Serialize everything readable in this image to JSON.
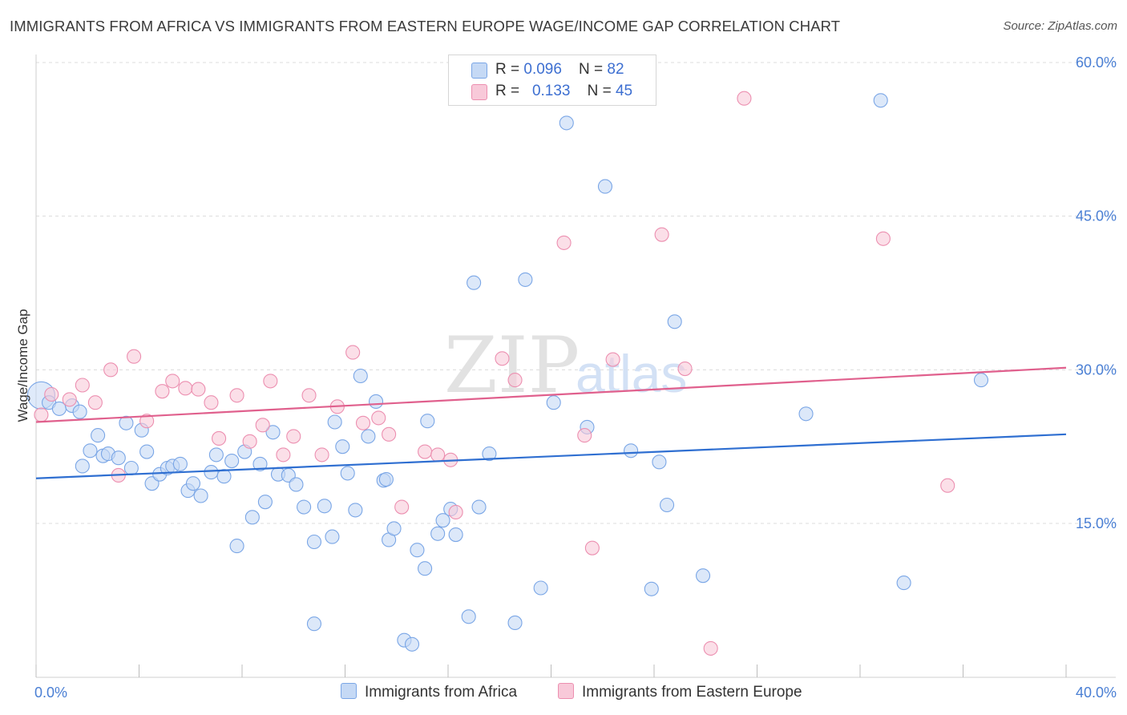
{
  "title": "IMMIGRANTS FROM AFRICA VS IMMIGRANTS FROM EASTERN EUROPE WAGE/INCOME GAP CORRELATION CHART",
  "source": "Source: ZipAtlas.com",
  "watermark": {
    "zip": "ZIP",
    "atlas": "atlas"
  },
  "legend": {
    "rows": [
      {
        "r_label": "R = ",
        "r_value": "0.096",
        "n_label": "N = ",
        "n_value": "82"
      },
      {
        "r_label": "R = ",
        "r_value": "0.133",
        "n_label": "N = ",
        "n_value": "45"
      }
    ]
  },
  "chart_data": {
    "type": "scatter",
    "xlabel": "",
    "ylabel": "Wage/Income Gap",
    "xlim": [
      0,
      40
    ],
    "ylim": [
      0,
      60
    ],
    "x_tick_labels": [
      {
        "value": 0,
        "label": "0.0%"
      },
      {
        "value": 40,
        "label": "40.0%"
      }
    ],
    "x_minor_ticks": [
      0,
      4,
      8,
      12,
      16,
      20,
      24,
      28,
      32,
      36,
      40
    ],
    "y_ticks": [
      {
        "value": 15,
        "label": "15.0%"
      },
      {
        "value": 30,
        "label": "30.0%"
      },
      {
        "value": 45,
        "label": "45.0%"
      },
      {
        "value": 60,
        "label": "60.0%"
      }
    ],
    "grid": true,
    "legend_position": "top-center",
    "series": [
      {
        "name": "Immigrants from Africa",
        "color": "#7aa6e6",
        "fill": "#c5d9f5",
        "trend": {
          "x": [
            0,
            40
          ],
          "y": [
            19.4,
            23.7
          ],
          "color": "#2f6fd1"
        },
        "points": [
          [
            0.2,
            27.5
          ],
          [
            0.5,
            26.8
          ],
          [
            0.9,
            26.2
          ],
          [
            1.4,
            26.5
          ],
          [
            1.7,
            25.9
          ],
          [
            1.8,
            20.6
          ],
          [
            2.1,
            22.1
          ],
          [
            2.4,
            23.6
          ],
          [
            2.6,
            21.6
          ],
          [
            2.8,
            21.8
          ],
          [
            3.2,
            21.4
          ],
          [
            3.5,
            24.8
          ],
          [
            3.7,
            20.4
          ],
          [
            4.1,
            24.1
          ],
          [
            4.3,
            22.0
          ],
          [
            4.5,
            18.9
          ],
          [
            4.8,
            19.8
          ],
          [
            5.1,
            20.4
          ],
          [
            5.3,
            20.6
          ],
          [
            5.6,
            20.8
          ],
          [
            5.9,
            18.2
          ],
          [
            6.1,
            18.9
          ],
          [
            6.4,
            17.7
          ],
          [
            6.8,
            20.0
          ],
          [
            7.0,
            21.7
          ],
          [
            7.3,
            19.6
          ],
          [
            7.6,
            21.1
          ],
          [
            7.8,
            12.8
          ],
          [
            8.1,
            22.0
          ],
          [
            8.4,
            15.6
          ],
          [
            8.7,
            20.8
          ],
          [
            8.9,
            17.1
          ],
          [
            9.2,
            23.9
          ],
          [
            9.4,
            19.8
          ],
          [
            9.8,
            19.7
          ],
          [
            10.1,
            18.8
          ],
          [
            10.4,
            16.6
          ],
          [
            10.8,
            13.2
          ],
          [
            10.8,
            5.2
          ],
          [
            11.2,
            16.7
          ],
          [
            11.5,
            13.7
          ],
          [
            11.6,
            24.9
          ],
          [
            11.9,
            22.5
          ],
          [
            12.1,
            19.9
          ],
          [
            12.4,
            16.3
          ],
          [
            12.6,
            29.4
          ],
          [
            12.9,
            23.5
          ],
          [
            13.2,
            26.9
          ],
          [
            13.5,
            19.2
          ],
          [
            13.7,
            13.4
          ],
          [
            13.9,
            14.5
          ],
          [
            14.3,
            3.6
          ],
          [
            14.6,
            3.2
          ],
          [
            14.8,
            12.4
          ],
          [
            15.1,
            10.6
          ],
          [
            15.2,
            25.0
          ],
          [
            15.6,
            14.0
          ],
          [
            15.8,
            15.3
          ],
          [
            16.1,
            16.4
          ],
          [
            16.3,
            13.9
          ],
          [
            16.8,
            5.9
          ],
          [
            17.2,
            16.6
          ],
          [
            17.6,
            21.8
          ],
          [
            17.0,
            38.5
          ],
          [
            18.6,
            5.3
          ],
          [
            19.0,
            38.8
          ],
          [
            19.6,
            8.7
          ],
          [
            20.1,
            26.8
          ],
          [
            20.6,
            54.1
          ],
          [
            21.4,
            24.4
          ],
          [
            22.1,
            47.9
          ],
          [
            23.1,
            22.1
          ],
          [
            23.9,
            8.6
          ],
          [
            24.2,
            21.0
          ],
          [
            24.5,
            16.8
          ],
          [
            24.8,
            34.7
          ],
          [
            25.9,
            9.9
          ],
          [
            29.9,
            25.7
          ],
          [
            32.8,
            56.3
          ],
          [
            33.7,
            9.2
          ],
          [
            36.7,
            29.0
          ],
          [
            13.6,
            19.3
          ]
        ]
      },
      {
        "name": "Immigrants from Eastern Europe",
        "color": "#ec8fb0",
        "fill": "#f8c9d9",
        "trend": {
          "x": [
            0,
            40
          ],
          "y": [
            24.9,
            30.2
          ],
          "color": "#e0608d"
        },
        "points": [
          [
            0.2,
            25.6
          ],
          [
            0.6,
            27.6
          ],
          [
            1.3,
            27.1
          ],
          [
            1.8,
            28.5
          ],
          [
            2.3,
            26.8
          ],
          [
            2.9,
            30.0
          ],
          [
            3.2,
            19.7
          ],
          [
            3.8,
            31.3
          ],
          [
            4.3,
            25.0
          ],
          [
            4.9,
            27.9
          ],
          [
            5.3,
            28.9
          ],
          [
            5.8,
            28.2
          ],
          [
            6.3,
            28.1
          ],
          [
            6.8,
            26.8
          ],
          [
            7.1,
            23.3
          ],
          [
            7.8,
            27.5
          ],
          [
            8.3,
            23.0
          ],
          [
            8.8,
            24.6
          ],
          [
            9.1,
            28.9
          ],
          [
            9.6,
            21.7
          ],
          [
            10.0,
            23.5
          ],
          [
            10.6,
            27.5
          ],
          [
            11.1,
            21.7
          ],
          [
            11.7,
            26.4
          ],
          [
            12.3,
            31.7
          ],
          [
            12.7,
            24.8
          ],
          [
            13.3,
            25.3
          ],
          [
            13.7,
            23.7
          ],
          [
            14.2,
            16.6
          ],
          [
            15.1,
            22.0
          ],
          [
            15.6,
            21.7
          ],
          [
            16.1,
            21.2
          ],
          [
            16.3,
            16.1
          ],
          [
            18.1,
            31.1
          ],
          [
            18.6,
            29.0
          ],
          [
            20.5,
            42.4
          ],
          [
            21.3,
            23.6
          ],
          [
            21.6,
            12.6
          ],
          [
            22.4,
            31.0
          ],
          [
            24.3,
            43.2
          ],
          [
            25.2,
            30.1
          ],
          [
            26.2,
            2.8
          ],
          [
            27.5,
            56.5
          ],
          [
            32.9,
            42.8
          ],
          [
            35.4,
            18.7
          ]
        ]
      }
    ]
  },
  "bottom_legend": [
    "Immigrants from Africa",
    "Immigrants from Eastern Europe"
  ]
}
